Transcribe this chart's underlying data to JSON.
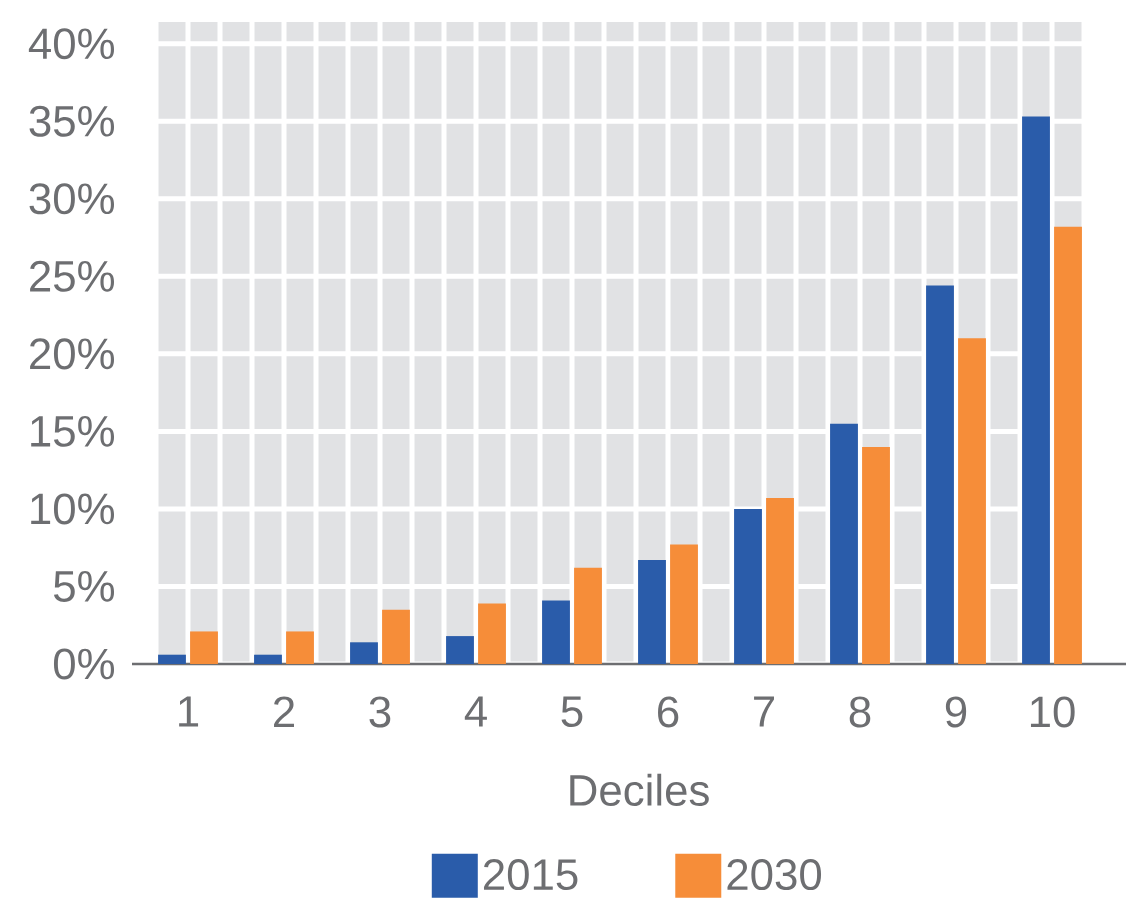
{
  "chart_data": {
    "type": "bar",
    "xlabel": "Deciles",
    "categories": [
      "1",
      "2",
      "3",
      "4",
      "5",
      "6",
      "7",
      "8",
      "9",
      "10"
    ],
    "series": [
      {
        "name": "2015",
        "color": "#2a5caa",
        "values": [
          0.6,
          0.6,
          1.4,
          1.8,
          4.1,
          6.7,
          10.0,
          15.5,
          24.4,
          35.3
        ]
      },
      {
        "name": "2030",
        "color": "#f68d39",
        "values": [
          2.1,
          2.1,
          3.5,
          3.9,
          6.2,
          7.7,
          10.7,
          14.0,
          21.0,
          28.2
        ]
      }
    ],
    "ylim": [
      0,
      41.4
    ],
    "yticks": [
      {
        "value": 0,
        "label": "0%"
      },
      {
        "value": 5,
        "label": "5%"
      },
      {
        "value": 10,
        "label": "10%"
      },
      {
        "value": 15,
        "label": "15%"
      },
      {
        "value": 20,
        "label": "20%"
      },
      {
        "value": 25,
        "label": "25%"
      },
      {
        "value": 30,
        "label": "30%"
      },
      {
        "value": 35,
        "label": "35%"
      },
      {
        "value": 40,
        "label": "40%"
      }
    ],
    "grid": true,
    "legend": "bottom"
  }
}
